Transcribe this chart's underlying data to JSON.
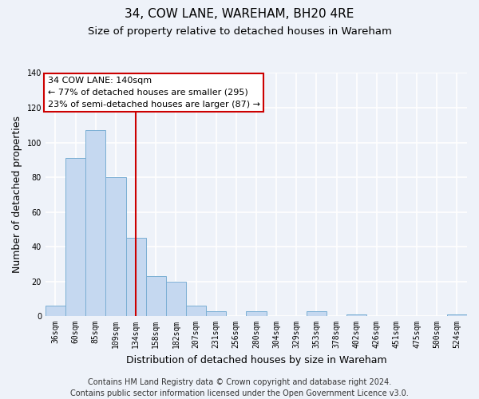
{
  "title": "34, COW LANE, WAREHAM, BH20 4RE",
  "subtitle": "Size of property relative to detached houses in Wareham",
  "xlabel": "Distribution of detached houses by size in Wareham",
  "ylabel": "Number of detached properties",
  "bar_labels": [
    "36sqm",
    "60sqm",
    "85sqm",
    "109sqm",
    "134sqm",
    "158sqm",
    "182sqm",
    "207sqm",
    "231sqm",
    "256sqm",
    "280sqm",
    "304sqm",
    "329sqm",
    "353sqm",
    "378sqm",
    "402sqm",
    "426sqm",
    "451sqm",
    "475sqm",
    "500sqm",
    "524sqm"
  ],
  "bar_values": [
    6,
    91,
    107,
    80,
    45,
    23,
    20,
    6,
    3,
    0,
    3,
    0,
    0,
    3,
    0,
    1,
    0,
    0,
    0,
    0,
    1
  ],
  "bar_color": "#c5d8f0",
  "bar_edge_color": "#7bafd4",
  "vline_color": "#cc0000",
  "vline_x_index": 4.5,
  "ylim": [
    0,
    140
  ],
  "yticks": [
    0,
    20,
    40,
    60,
    80,
    100,
    120,
    140
  ],
  "annotation_line1": "34 COW LANE: 140sqm",
  "annotation_line2": "← 77% of detached houses are smaller (295)",
  "annotation_line3": "23% of semi-detached houses are larger (87) →",
  "footer_line1": "Contains HM Land Registry data © Crown copyright and database right 2024.",
  "footer_line2": "Contains public sector information licensed under the Open Government Licence v3.0.",
  "background_color": "#eef2f9",
  "grid_color": "#ffffff",
  "title_fontsize": 11,
  "subtitle_fontsize": 9.5,
  "axis_label_fontsize": 9,
  "tick_fontsize": 7,
  "annotation_fontsize": 8,
  "footer_fontsize": 7
}
